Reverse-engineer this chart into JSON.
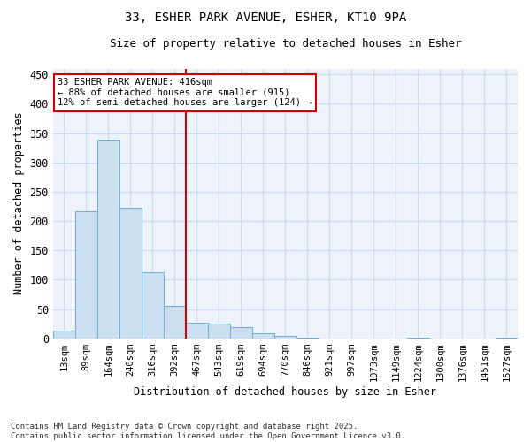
{
  "title1": "33, ESHER PARK AVENUE, ESHER, KT10 9PA",
  "title2": "Size of property relative to detached houses in Esher",
  "bar_labels": [
    "13sqm",
    "89sqm",
    "164sqm",
    "240sqm",
    "316sqm",
    "392sqm",
    "467sqm",
    "543sqm",
    "619sqm",
    "694sqm",
    "770sqm",
    "846sqm",
    "921sqm",
    "997sqm",
    "1073sqm",
    "1149sqm",
    "1224sqm",
    "1300sqm",
    "1376sqm",
    "1451sqm",
    "1527sqm"
  ],
  "bar_values": [
    14,
    217,
    338,
    222,
    113,
    55,
    27,
    26,
    19,
    9,
    5,
    2,
    0,
    0,
    0,
    0,
    1,
    0,
    0,
    0,
    2
  ],
  "bar_color": "#ccdff0",
  "bar_edge_color": "#6aafd6",
  "vline_color": "#cc0000",
  "ylabel": "Number of detached properties",
  "xlabel": "Distribution of detached houses by size in Esher",
  "ylim": [
    0,
    460
  ],
  "yticks": [
    0,
    50,
    100,
    150,
    200,
    250,
    300,
    350,
    400,
    450
  ],
  "annotation_title": "33 ESHER PARK AVENUE: 416sqm",
  "annotation_line1": "← 88% of detached houses are smaller (915)",
  "annotation_line2": "12% of semi-detached houses are larger (124) →",
  "annotation_box_color": "#ffffff",
  "annotation_box_edge": "#cc0000",
  "footer1": "Contains HM Land Registry data © Crown copyright and database right 2025.",
  "footer2": "Contains public sector information licensed under the Open Government Licence v3.0.",
  "bg_color": "#ffffff",
  "plot_bg_color": "#eef3fb",
  "grid_color": "#c8d8ef"
}
